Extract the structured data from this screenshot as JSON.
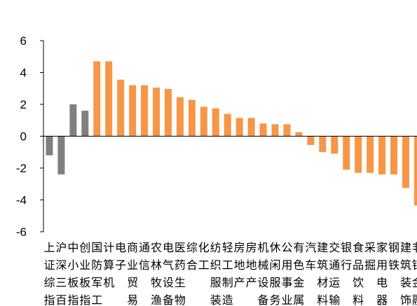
{
  "chart_data": {
    "type": "bar",
    "categories": [
      "上证综指",
      "沪深300",
      "中小板指",
      "创业板指",
      "国防军工",
      "计算机",
      "电子",
      "商业贸易",
      "通信",
      "农林牧渔",
      "电气设备",
      "医药生物",
      "综合",
      "化工",
      "纺织服装",
      "轻工制造",
      "房地产",
      "房屋建筑",
      "机械设备",
      "休闲服务",
      "公用事业",
      "有色金属",
      "汽车",
      "建筑材料",
      "交通运输",
      "银行",
      "食品饮料",
      "采掘",
      "家用电器",
      "钢铁",
      "建筑装饰",
      "非银金融"
    ],
    "label_lines": [
      [
        "上",
        "沪",
        "中",
        "创",
        "国",
        "计",
        "电",
        "商",
        "通",
        "农",
        "电",
        "医",
        "综",
        "化",
        "纺",
        "轻",
        "房",
        "房",
        "机",
        "休",
        "公",
        "有",
        "汽",
        "建",
        "交",
        "银",
        "食",
        "采",
        "家",
        "钢",
        "建",
        "非"
      ],
      [
        "证",
        "深",
        "小",
        "业",
        "防",
        "算",
        "子",
        "业",
        "信",
        "林",
        "气",
        "药",
        "合",
        "工",
        "织",
        "工",
        "地",
        "地",
        "械",
        "闲",
        "用",
        "色",
        "车",
        "筑",
        "通",
        "行",
        "品",
        "掘",
        "用",
        "铁",
        "筑",
        "银"
      ],
      [
        "综",
        "三",
        "板",
        "板",
        "军",
        "机",
        "",
        "贸",
        "",
        "牧",
        "设",
        "生",
        "",
        "",
        "服",
        "制",
        "产",
        "产",
        "设",
        "服",
        "事",
        "金",
        "",
        "材",
        "运",
        "",
        "饮",
        "",
        "电",
        "",
        "装",
        "金"
      ],
      [
        "指",
        "百",
        "指",
        "指",
        "工",
        "",
        "",
        "易",
        "",
        "渔",
        "备",
        "物",
        "",
        "",
        "装",
        "造",
        "",
        "",
        "备",
        "务",
        "业",
        "属",
        "",
        "料",
        "输",
        "",
        "料",
        "",
        "器",
        "",
        "饰",
        "融"
      ]
    ],
    "values": [
      -1.2,
      -2.4,
      2.0,
      1.6,
      4.7,
      4.7,
      3.55,
      3.2,
      3.2,
      3.05,
      2.97,
      2.45,
      2.28,
      1.85,
      1.75,
      1.4,
      1.15,
      1.15,
      0.8,
      0.75,
      0.75,
      0.25,
      -0.55,
      -1.0,
      -1.1,
      -2.1,
      -2.3,
      -2.3,
      -2.4,
      -2.4,
      -3.25,
      -4.35
    ],
    "colors": [
      "#808080",
      "#808080",
      "#808080",
      "#808080",
      "#F79646",
      "#F79646",
      "#F79646",
      "#F79646",
      "#F79646",
      "#F79646",
      "#F79646",
      "#F79646",
      "#F79646",
      "#F79646",
      "#F79646",
      "#F79646",
      "#F79646",
      "#F79646",
      "#F79646",
      "#F79646",
      "#F79646",
      "#F79646",
      "#F79646",
      "#F79646",
      "#F79646",
      "#F79646",
      "#F79646",
      "#F79646",
      "#F79646",
      "#F79646",
      "#F79646",
      "#F79646"
    ],
    "yticks": [
      "6",
      "4",
      "2",
      "0",
      "-2",
      "-4",
      "-6"
    ],
    "ylim": [
      -6,
      6
    ],
    "grid": false,
    "legend": "none",
    "title": "",
    "xlabel": "",
    "ylabel": ""
  }
}
